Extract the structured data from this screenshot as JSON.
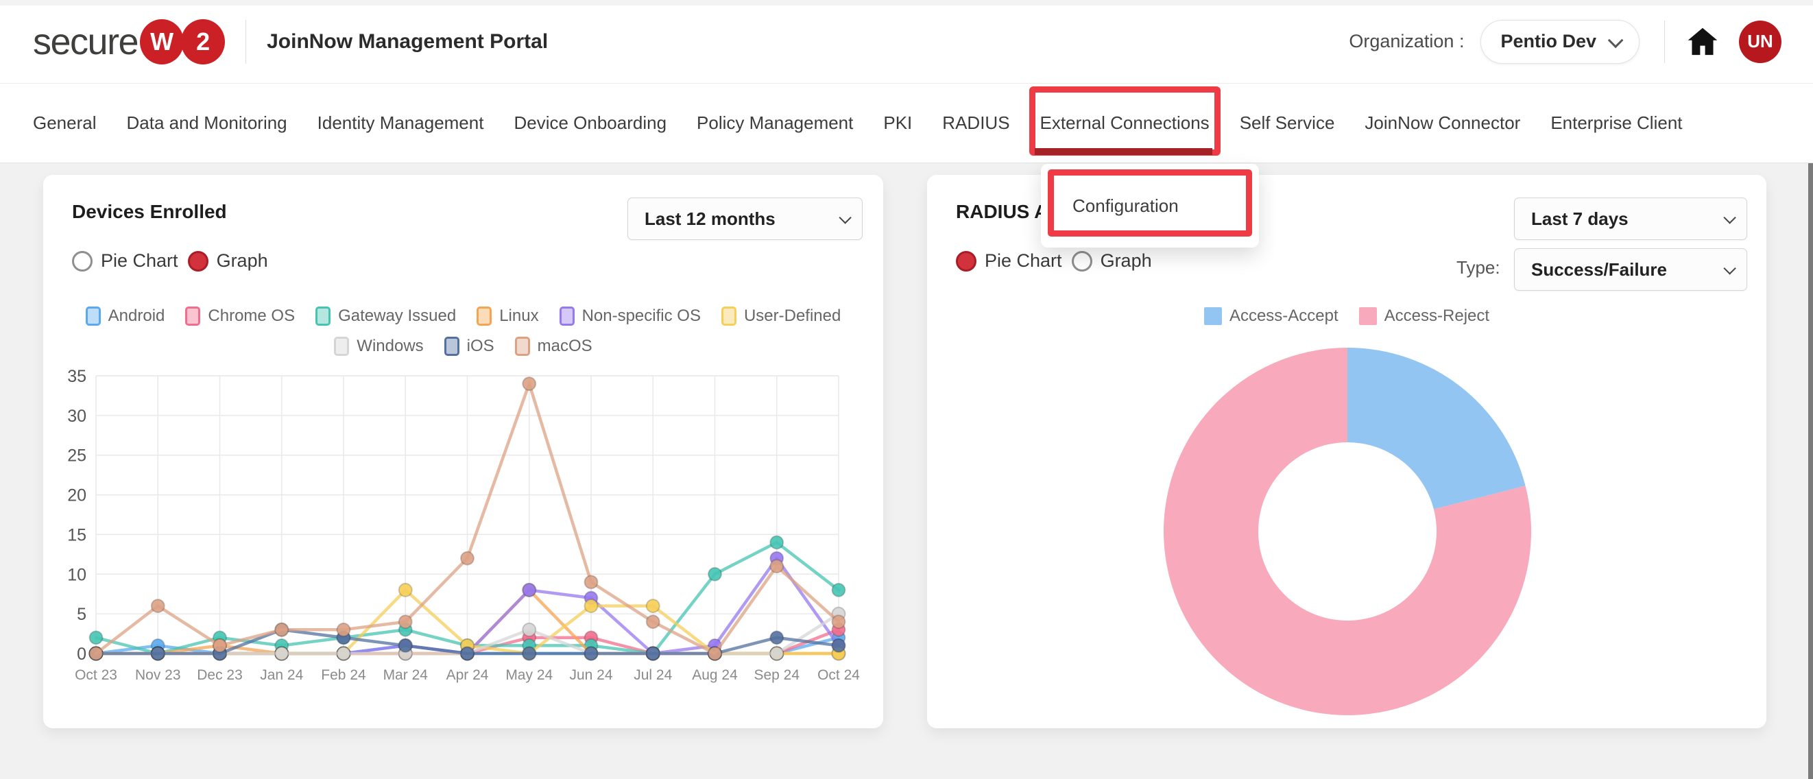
{
  "header": {
    "logo_text": "secure",
    "logo_badges": [
      "W",
      "2"
    ],
    "portal_title": "JoinNow Management Portal",
    "organization_label": "Organization :",
    "organization_value": "Pentio Dev",
    "avatar_initials": "UN",
    "brand_red": "#cb2026"
  },
  "nav": {
    "items": [
      "General",
      "Data and Monitoring",
      "Identity Management",
      "Device Onboarding",
      "Policy Management",
      "PKI",
      "RADIUS",
      "External Connections",
      "Self Service",
      "JoinNow Connector",
      "Enterprise Client"
    ],
    "active_item": "External Connections",
    "active_underline_color": "#a42125"
  },
  "nav_dropdown": {
    "items": [
      "Configuration"
    ]
  },
  "annotation": {
    "box_color": "#ee3b46"
  },
  "devices_card": {
    "title": "Devices Enrolled",
    "period_value": "Last 12 months",
    "view_options": [
      {
        "label": "Pie Chart",
        "selected": false
      },
      {
        "label": "Graph",
        "selected": true
      }
    ]
  },
  "radius_card": {
    "title_visible": "RADIUS A",
    "period_value": "Last 7 days",
    "type_label": "Type:",
    "type_value": "Success/Failure",
    "view_options": [
      {
        "label": "Pie Chart",
        "selected": true
      },
      {
        "label": "Graph",
        "selected": false
      }
    ]
  },
  "chart_data": [
    {
      "type": "line",
      "title": "Devices Enrolled",
      "x": [
        "Oct 23",
        "Nov 23",
        "Dec 23",
        "Jan 24",
        "Feb 24",
        "Mar 24",
        "Apr 24",
        "May 24",
        "Jun 24",
        "Jul 24",
        "Aug 24",
        "Sep 24",
        "Oct 24"
      ],
      "ylim": [
        0,
        35
      ],
      "ytick_step": 5,
      "grid": true,
      "legend_position": "top",
      "legend_rows": [
        6,
        3
      ],
      "series": [
        {
          "name": "Android",
          "color": "#5aa9f0",
          "values": [
            0,
            1,
            0,
            0,
            0,
            1,
            0,
            0,
            0,
            0,
            0,
            0,
            2
          ]
        },
        {
          "name": "Chrome OS",
          "color": "#f26d8d",
          "values": [
            0,
            0,
            0,
            0,
            0,
            0,
            0,
            2,
            2,
            0,
            0,
            0,
            3
          ]
        },
        {
          "name": "Gateway Issued",
          "color": "#45c4b2",
          "values": [
            2,
            0,
            2,
            1,
            2,
            3,
            1,
            1,
            1,
            0,
            10,
            14,
            8
          ]
        },
        {
          "name": "Linux",
          "color": "#f7a451",
          "values": [
            0,
            0,
            1,
            0,
            0,
            0,
            0,
            8,
            0,
            0,
            0,
            0,
            0
          ]
        },
        {
          "name": "Non-specific OS",
          "color": "#9678f0",
          "values": [
            0,
            0,
            0,
            0,
            0,
            1,
            0,
            8,
            7,
            0,
            1,
            12,
            1
          ]
        },
        {
          "name": "User-Defined",
          "color": "#f6ce58",
          "values": [
            0,
            0,
            0,
            0,
            0,
            8,
            1,
            0,
            6,
            6,
            0,
            0,
            0
          ]
        },
        {
          "name": "Windows",
          "color": "#d5d5d5",
          "values": [
            0,
            0,
            0,
            0,
            0,
            0,
            0,
            3,
            0,
            0,
            0,
            0,
            5
          ]
        },
        {
          "name": "iOS",
          "color": "#53709f",
          "values": [
            0,
            0,
            0,
            3,
            2,
            1,
            0,
            0,
            0,
            0,
            0,
            2,
            1
          ]
        },
        {
          "name": "macOS",
          "color": "#dca183",
          "values": [
            0,
            6,
            1,
            3,
            3,
            4,
            12,
            34,
            9,
            4,
            0,
            11,
            4
          ]
        }
      ]
    },
    {
      "type": "pie",
      "donut": true,
      "labels": [
        "Access-Accept",
        "Access-Reject"
      ],
      "values_percent": [
        21,
        79
      ],
      "colors": [
        "#92c5f1",
        "#f8a9bc"
      ],
      "start_angle_deg": 0,
      "legend_position": "top"
    }
  ]
}
